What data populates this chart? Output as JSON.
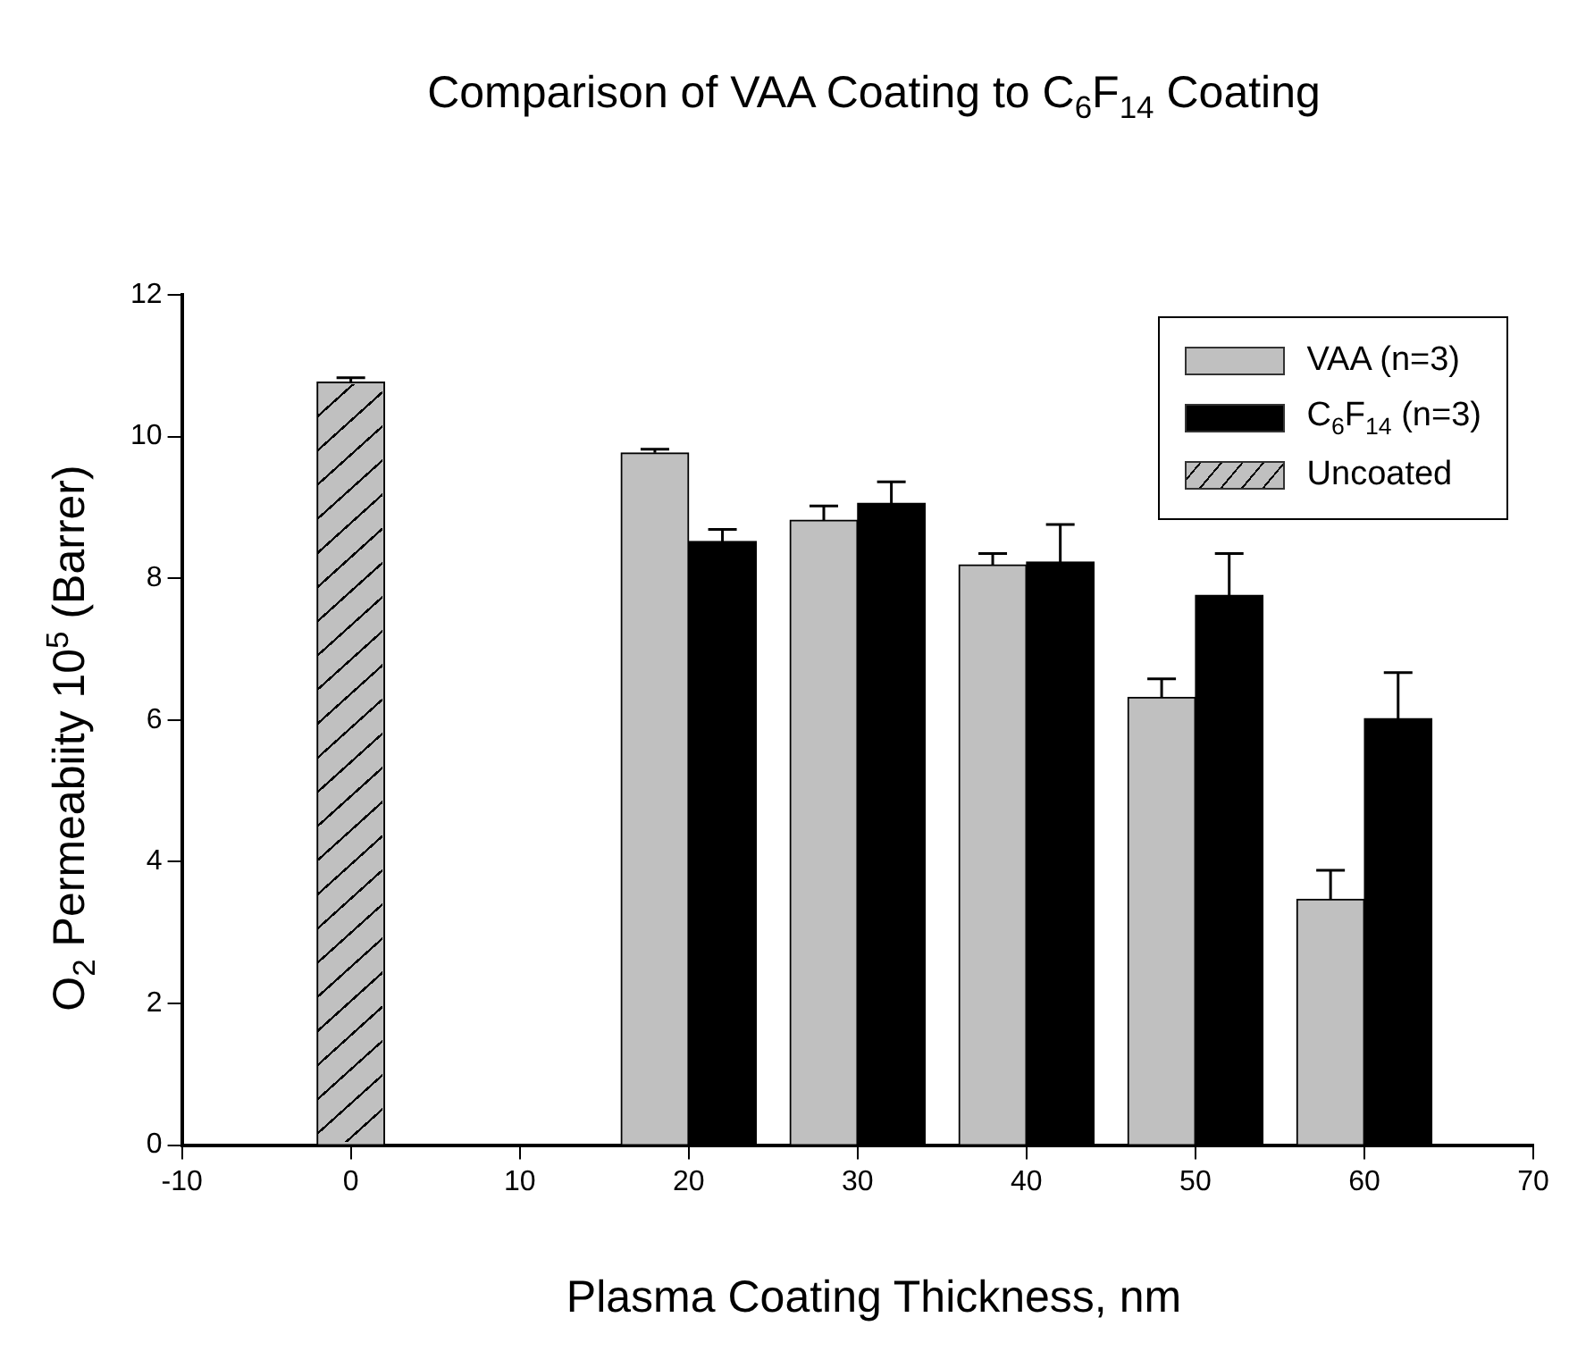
{
  "chart_data": {
    "type": "bar",
    "title": "Comparison of VAA Coating to C$_{6}$F$_{14}$ Coating",
    "xlabel": "Plasma Coating Thickness, nm",
    "ylabel": "O$_{2}$ Permeabiity 10$^{5}$ (Barrer)",
    "series": [
      {
        "name": "VAA (n=3)",
        "color": "#c0c0c0",
        "x": [
          18,
          28,
          38,
          48,
          58
        ],
        "values": [
          9.77,
          8.82,
          8.19,
          6.32,
          3.47
        ],
        "errors": [
          0.05,
          0.2,
          0.16,
          0.26,
          0.41
        ]
      },
      {
        "name": "C$_{6}$F$_{14}$ (n=3)",
        "color": "#000000",
        "x": [
          22,
          32,
          42,
          52,
          62
        ],
        "values": [
          8.52,
          9.06,
          8.23,
          7.76,
          6.02
        ],
        "errors": [
          0.17,
          0.3,
          0.53,
          0.59,
          0.65
        ]
      },
      {
        "name": "Uncoated",
        "color": "#c0c0c0",
        "x": [
          0
        ],
        "values": [
          10.77
        ],
        "errors": [
          0.06
        ]
      }
    ],
    "xlim": [
      -10,
      70
    ],
    "xticks": [
      -10,
      0,
      10,
      20,
      30,
      40,
      50,
      60,
      70
    ],
    "ylim": [
      0,
      12
    ],
    "yticks": [
      0,
      2,
      4,
      6,
      8,
      10,
      12
    ],
    "grid": false,
    "legend": "top right"
  }
}
